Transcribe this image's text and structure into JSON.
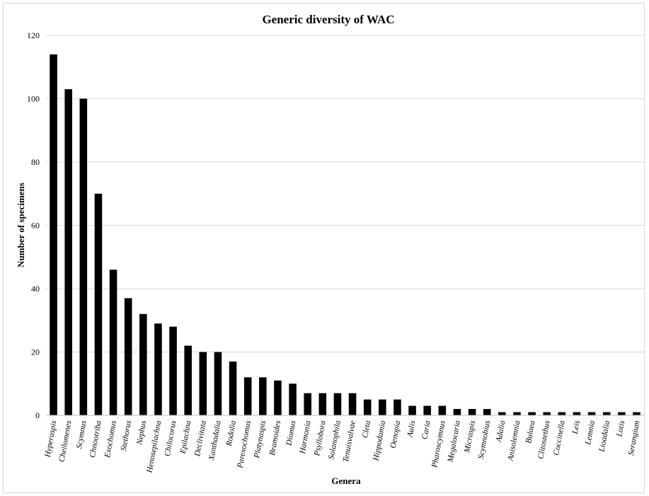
{
  "chart_data": {
    "type": "bar",
    "title": "Generic diversity of WAC",
    "xlabel": "Genera",
    "ylabel": "Number of specimens",
    "ylim": [
      0,
      120
    ],
    "yticks": [
      "0",
      "20",
      "40",
      "60",
      "80",
      "100",
      "120"
    ],
    "grid": true,
    "legend": "none",
    "bar_color": "#000000",
    "categories": [
      "Hyperaspis",
      "Cheilomenes",
      "Scymnus",
      "Chnootriba",
      "Exochomus",
      "Stethorus",
      "Nephus",
      "Henosepilachna",
      "Chilocorus",
      "Epilachna",
      "Declivitata",
      "Xanthadalia",
      "Rodolia",
      "Parexochomus",
      "Platynaspis",
      "Bramoides",
      "Diomus",
      "Harmonia",
      "Psyllobora",
      "Solanophila",
      "Tenuisvalvae",
      "Cleta",
      "Hippodamia",
      "Oenopia",
      "Aulis",
      "Caria",
      "Pharoscymnus",
      "Megalocaria",
      "Micraspis",
      "Scymnobius",
      "Adalia",
      "Anisolemnia",
      "Bulaea",
      "Clitostethus",
      "Coccinella",
      "Leis",
      "Lemnia",
      "Lioadalia",
      "Lotis",
      "Serangium"
    ],
    "values": [
      114,
      103,
      100,
      70,
      46,
      37,
      32,
      29,
      28,
      22,
      20,
      20,
      17,
      12,
      12,
      11,
      10,
      7,
      7,
      7,
      7,
      5,
      5,
      5,
      3,
      3,
      3,
      2,
      2,
      2,
      1,
      1,
      1,
      1,
      1,
      1,
      1,
      1,
      1,
      1
    ]
  }
}
